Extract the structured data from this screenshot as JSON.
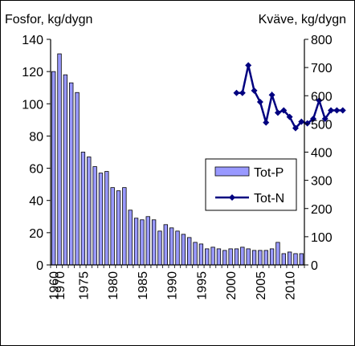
{
  "chart_data": {
    "type": "bar",
    "left_axis_label": "Fosfor, kg/dygn",
    "right_axis_label": "Kväve, kg/dygn",
    "left_ylim": [
      0,
      140
    ],
    "left_ticks": [
      0,
      20,
      40,
      60,
      80,
      100,
      120,
      140
    ],
    "right_ylim": [
      0,
      800
    ],
    "right_ticks": [
      0,
      100,
      200,
      300,
      400,
      500,
      600,
      700,
      800
    ],
    "x_tick_labels": [
      "1960",
      "1970",
      "1975",
      "1980",
      "1985",
      "1990",
      "1995",
      "2000",
      "2005",
      "2010"
    ],
    "grid": false,
    "legend_position": "right",
    "series": [
      {
        "name": "Tot-P",
        "axis": "left",
        "color": "#9999ff",
        "points": [
          [
            1960,
            120
          ],
          [
            1961,
            131
          ],
          [
            1962,
            118
          ],
          [
            1963,
            113
          ],
          [
            1964,
            107
          ],
          [
            1966,
            70
          ],
          [
            1967,
            67
          ],
          [
            1968,
            61
          ],
          [
            1969,
            57
          ],
          [
            1970,
            58
          ],
          [
            1971,
            48
          ],
          [
            1972,
            46
          ],
          [
            1973,
            48
          ],
          [
            1974,
            34
          ],
          [
            1975,
            29
          ],
          [
            1976,
            28
          ],
          [
            1977,
            30
          ],
          [
            1978,
            28
          ],
          [
            1979,
            21
          ],
          [
            1980,
            25
          ],
          [
            1981,
            23
          ],
          [
            1982,
            21
          ],
          [
            1983,
            19
          ],
          [
            1984,
            17
          ],
          [
            1985,
            14
          ],
          [
            1986,
            13
          ],
          [
            1987,
            10
          ],
          [
            1988,
            11
          ],
          [
            1989,
            10
          ],
          [
            1990,
            9
          ],
          [
            1991,
            10
          ],
          [
            1992,
            10
          ],
          [
            1993,
            11
          ],
          [
            1994,
            10
          ],
          [
            1995,
            9
          ],
          [
            1996,
            9
          ],
          [
            1997,
            9
          ],
          [
            1998,
            10
          ],
          [
            1999,
            14
          ],
          [
            2000,
            7
          ],
          [
            2001,
            8
          ],
          [
            2002,
            7
          ],
          [
            2003,
            7
          ]
        ]
      },
      {
        "name": "Tot-N",
        "axis": "right",
        "color": "#000080",
        "points": [
          [
            1992,
            610
          ],
          [
            1993,
            610
          ],
          [
            1994,
            708
          ],
          [
            1995,
            618
          ],
          [
            1996,
            578
          ],
          [
            1997,
            505
          ],
          [
            1998,
            603
          ],
          [
            1999,
            540
          ],
          [
            2000,
            548
          ],
          [
            2001,
            525
          ],
          [
            2002,
            485
          ],
          [
            2003,
            508
          ],
          [
            2004,
            502
          ],
          [
            2005,
            518
          ],
          [
            2006,
            583
          ],
          [
            2007,
            518
          ],
          [
            2008,
            548
          ],
          [
            2009,
            548
          ],
          [
            2010,
            548
          ]
        ]
      }
    ]
  }
}
